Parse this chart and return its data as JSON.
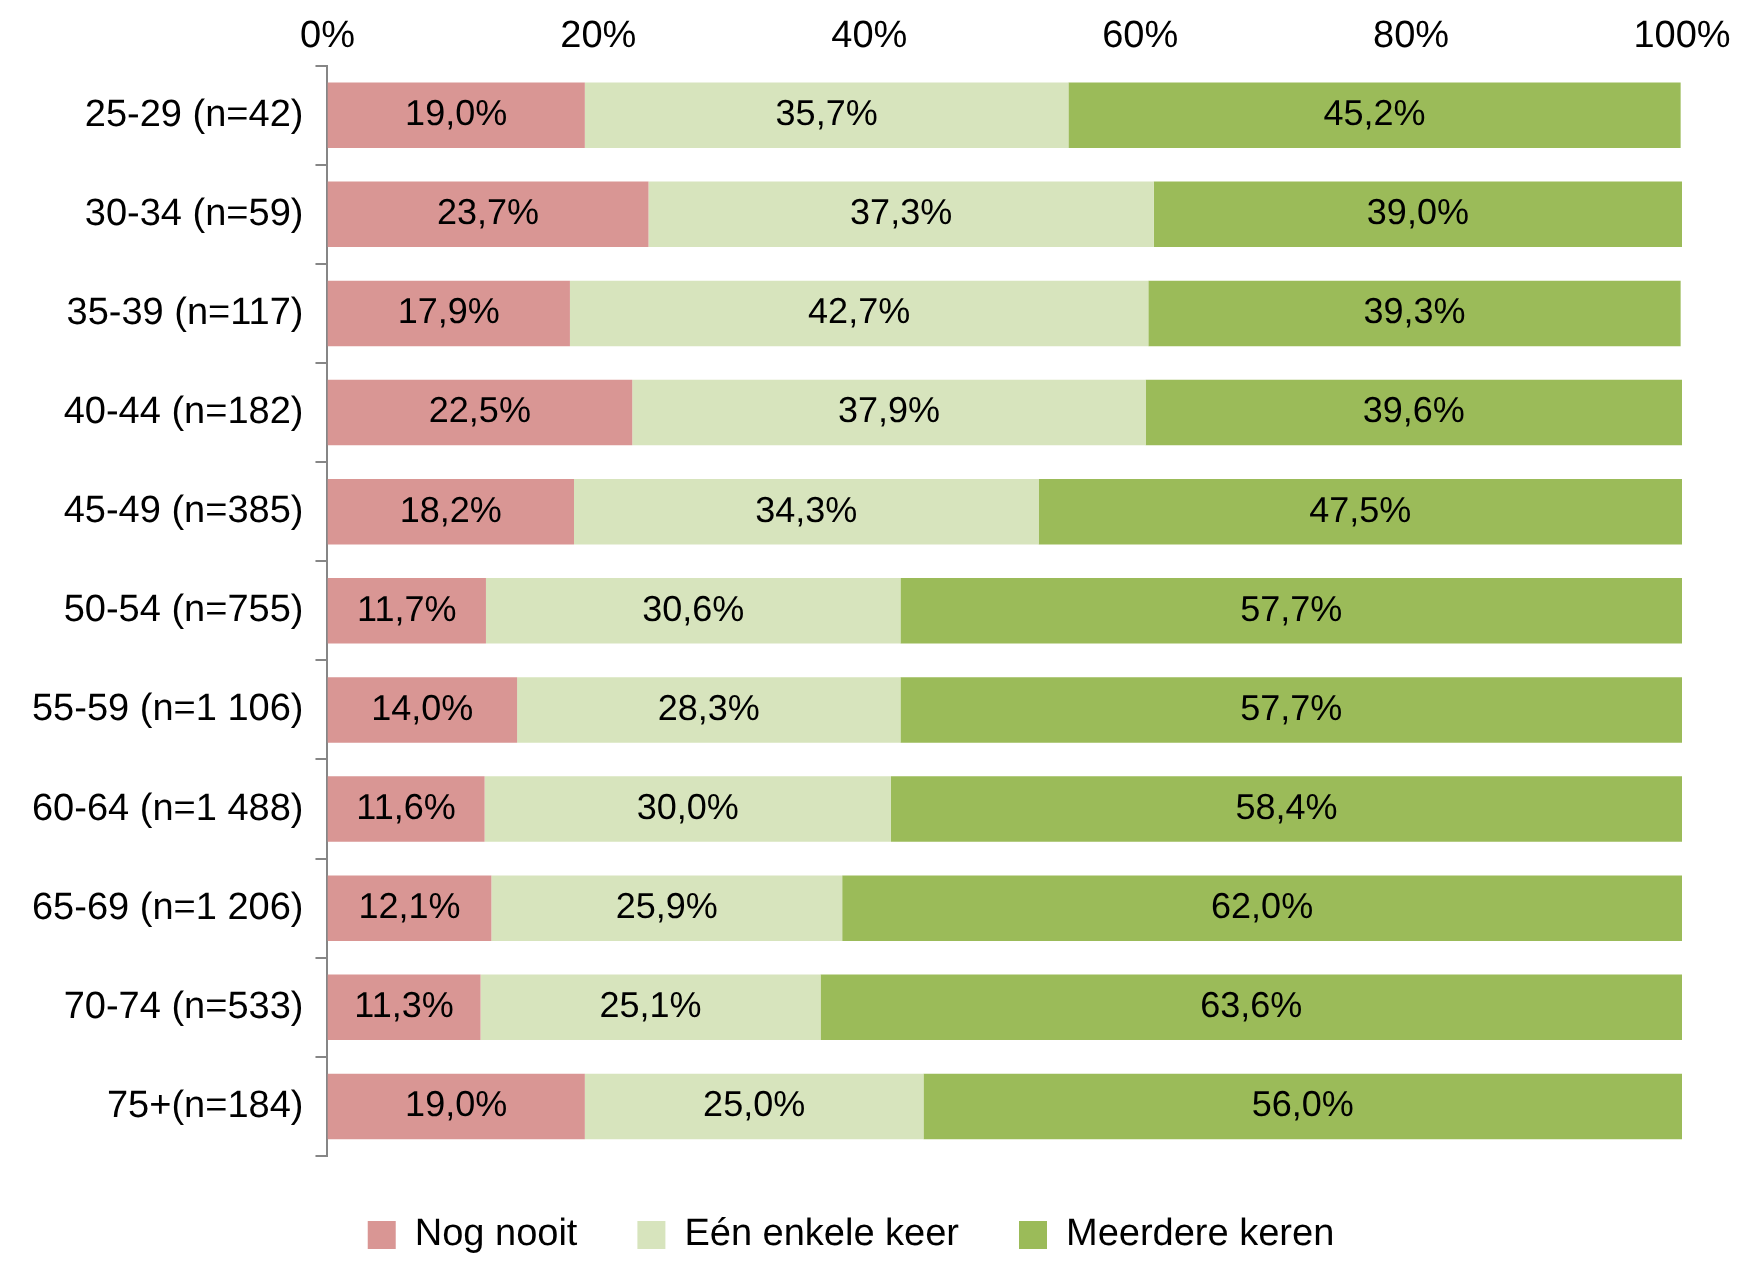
{
  "chart_data": {
    "type": "bar",
    "orientation": "horizontal",
    "stacked": true,
    "categories": [
      "25-29 (n=42)",
      "30-34 (n=59)",
      "35-39 (n=117)",
      "40-44 (n=182)",
      "45-49 (n=385)",
      "50-54 (n=755)",
      "55-59 (n=1 106)",
      "60-64 (n=1 488)",
      "65-69 (n=1 206)",
      "70-74 (n=533)",
      "75+(n=184)"
    ],
    "series": [
      {
        "name": "Nog nooit",
        "color": "#d99694",
        "values": [
          19.0,
          23.7,
          17.9,
          22.5,
          18.2,
          11.7,
          14.0,
          11.6,
          12.1,
          11.3,
          19.0
        ],
        "value_labels": [
          "19,0%",
          "23,7%",
          "17,9%",
          "22,5%",
          "18,2%",
          "11,7%",
          "14,0%",
          "11,6%",
          "12,1%",
          "11,3%",
          "19,0%"
        ]
      },
      {
        "name": "Eén enkele keer",
        "color": "#d7e4bd",
        "values": [
          35.7,
          37.3,
          42.7,
          37.9,
          34.3,
          30.6,
          28.3,
          30.0,
          25.9,
          25.1,
          25.0
        ],
        "value_labels": [
          "35,7%",
          "37,3%",
          "42,7%",
          "37,9%",
          "34,3%",
          "30,6%",
          "28,3%",
          "30,0%",
          "25,9%",
          "25,1%",
          "25,0%"
        ]
      },
      {
        "name": "Meerdere keren",
        "color": "#9bbb59",
        "values": [
          45.2,
          39.0,
          39.3,
          39.6,
          47.5,
          57.7,
          57.7,
          58.4,
          62.0,
          63.6,
          56.0
        ],
        "value_labels": [
          "45,2%",
          "39,0%",
          "39,3%",
          "39,6%",
          "47,5%",
          "57,7%",
          "57,7%",
          "58,4%",
          "62,0%",
          "63,6%",
          "56,0%"
        ]
      }
    ],
    "xlim": [
      0,
      100
    ],
    "xticks": [
      {
        "value": 0,
        "label": "0%"
      },
      {
        "value": 20,
        "label": "20%"
      },
      {
        "value": 40,
        "label": "40%"
      },
      {
        "value": 60,
        "label": "60%"
      },
      {
        "value": 80,
        "label": "80%"
      },
      {
        "value": 100,
        "label": "100%"
      }
    ],
    "grid": false,
    "legend": "bottom"
  }
}
